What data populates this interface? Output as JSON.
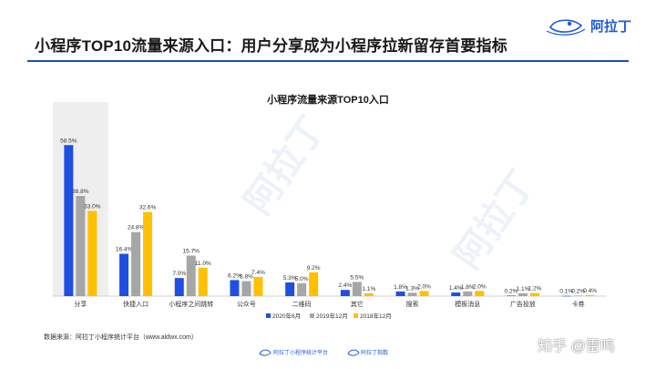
{
  "page": {
    "title": "小程序TOP10流量来源入口：用户分享成为小程序拉新留存首要指标",
    "logo_text": "阿拉丁",
    "source_note": "数据来源：阿拉丁小程序统计平台（www.aldwx.com）",
    "footer_left": "阿拉丁小程序统计平台",
    "footer_right": "阿拉丁指数",
    "watermark": "阿拉丁",
    "zhihu_tag": "知乎 @雷鸣"
  },
  "colors": {
    "series": [
      "#1f4fe0",
      "#a6a6a6",
      "#ffc000"
    ],
    "title_rule": "#1a4fb8",
    "highlight": "#eeeeee"
  },
  "chart_data": {
    "type": "bar",
    "title": "小程序流量来源TOP10入口",
    "categories": [
      "分享",
      "快捷入口",
      "小程序之间跳转",
      "公众号",
      "二维码",
      "其它",
      "搜索",
      "模板消息",
      "广告投放",
      "卡券"
    ],
    "series": [
      {
        "name": "2020年6月",
        "values": [
          58.5,
          16.4,
          7.0,
          6.2,
          5.3,
          2.4,
          1.8,
          1.4,
          0.2,
          0.1
        ]
      },
      {
        "name": "2019年12月",
        "values": [
          38.8,
          24.8,
          15.7,
          5.8,
          5.0,
          5.5,
          1.3,
          1.8,
          1.1,
          0.2
        ]
      },
      {
        "name": "2018年12月",
        "values": [
          33.0,
          32.6,
          11.0,
          7.4,
          9.2,
          1.1,
          2.0,
          2.0,
          1.2,
          0.4
        ]
      }
    ],
    "value_suffix": "%",
    "highlighted_category": "分享",
    "ylim": [
      0,
      60
    ],
    "grid": false,
    "legend": "bottom"
  }
}
